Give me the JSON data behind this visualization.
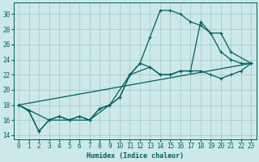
{
  "xlabel": "Humidex (Indice chaleur)",
  "xlim": [
    -0.5,
    23.5
  ],
  "ylim": [
    13.5,
    31.5
  ],
  "xticks": [
    0,
    1,
    2,
    3,
    4,
    5,
    6,
    7,
    8,
    9,
    10,
    11,
    12,
    13,
    14,
    15,
    16,
    17,
    18,
    19,
    20,
    21,
    22,
    23
  ],
  "yticks": [
    14,
    16,
    18,
    20,
    22,
    24,
    26,
    28,
    30
  ],
  "background_color": "#cce8e8",
  "grid_color": "#aacccc",
  "line_color": "#006060",
  "series": [
    {
      "x": [
        0,
        1,
        2,
        3,
        4,
        5,
        6,
        7,
        8,
        9,
        10,
        11,
        12,
        13,
        14,
        15,
        16,
        17,
        18,
        19,
        20,
        21,
        22,
        23
      ],
      "y": [
        18,
        17.2,
        14.5,
        16,
        16.5,
        16,
        16.5,
        16,
        17.5,
        18,
        19,
        22,
        23.5,
        27,
        30.5,
        30.5,
        30,
        29,
        28.5,
        27.5,
        25,
        24,
        23.5,
        23.5
      ]
    },
    {
      "x": [
        0,
        1,
        2,
        3,
        4,
        5,
        6,
        7,
        8,
        9,
        10,
        11,
        12,
        13,
        14,
        15,
        16,
        17,
        18,
        19,
        20,
        21,
        22,
        23
      ],
      "y": [
        18,
        17.2,
        14.5,
        16,
        16.5,
        16,
        16.5,
        16,
        17.5,
        18,
        19,
        22,
        23.5,
        23,
        22,
        22,
        22.5,
        22.5,
        22.5,
        22,
        21.5,
        22,
        22.5,
        23.5
      ]
    },
    {
      "x": [
        0,
        23
      ],
      "y": [
        18,
        23.5
      ],
      "markers": false
    },
    {
      "x": [
        0,
        3,
        5,
        7,
        9,
        11,
        13,
        14,
        15,
        16,
        17,
        18,
        19,
        20,
        21,
        23
      ],
      "y": [
        18,
        16,
        16,
        16,
        18,
        22,
        23,
        22,
        22,
        22.5,
        22.5,
        29,
        27.5,
        27.5,
        25,
        23.5
      ],
      "markers": true
    }
  ]
}
